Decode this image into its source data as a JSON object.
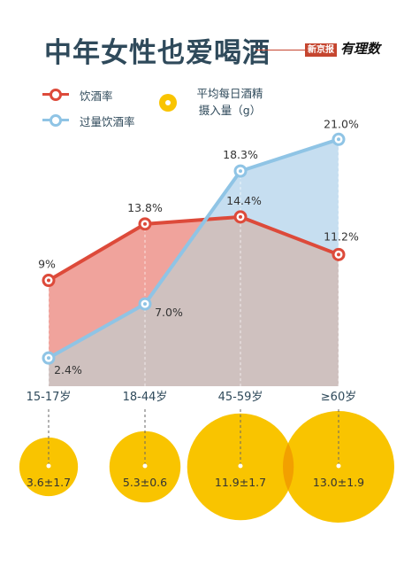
{
  "title": "中年女性也爱喝酒",
  "brand": {
    "outlet": "新京报",
    "column": "有理数"
  },
  "legend": {
    "drinking": "饮酒率",
    "excessive": "过量饮酒率",
    "alcohol_line1": "平均每日酒精",
    "alcohol_line2": "摄入量（g）"
  },
  "colors": {
    "drinking_line": "#dd4a3a",
    "drinking_fill": "#f0a39c",
    "excessive_line": "#8fc4e5",
    "excessive_fill": "#c6def0",
    "base_fill": "#cfc1bf",
    "circle": "#f9c400",
    "circle_overlap": "#f2a000",
    "axis_text": "#2f4a5b"
  },
  "chart_data": {
    "type": "line",
    "categories": [
      "15-17岁",
      "18-44岁",
      "45-59岁",
      "≥60岁"
    ],
    "series": [
      {
        "name": "饮酒率",
        "values": [
          9,
          13.8,
          14.4,
          11.2
        ],
        "labels": [
          "9%",
          "13.8%",
          "14.4%",
          "11.2%"
        ]
      },
      {
        "name": "过量饮酒率",
        "values": [
          2.4,
          7.0,
          18.3,
          21.0
        ],
        "labels": [
          "2.4%",
          "7.0%",
          "18.3%",
          "21.0%"
        ]
      }
    ],
    "bubbles": {
      "name": "平均每日酒精摄入量（g）",
      "values": [
        3.6,
        5.3,
        11.9,
        13.0
      ],
      "labels": [
        "3.6±1.7",
        "5.3±0.6",
        "11.9±1.7",
        "13.0±1.9"
      ]
    },
    "ylim": [
      0,
      22
    ]
  }
}
